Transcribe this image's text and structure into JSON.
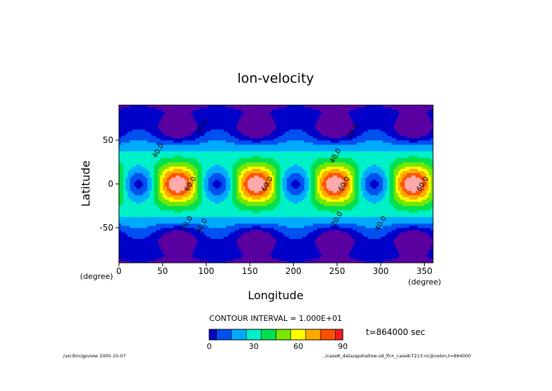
{
  "chart_data": {
    "type": "heatmap",
    "title": "lon-velocity",
    "xlabel": "Longitude",
    "ylabel": "Latitude",
    "x_unit": "(degree)",
    "y_unit": "(degree)",
    "xlim": [
      0,
      360
    ],
    "ylim": [
      -90,
      90
    ],
    "x_ticks": [
      0,
      50,
      100,
      150,
      200,
      250,
      300,
      350
    ],
    "y_ticks": [
      -50,
      0,
      50
    ],
    "contour_interval_text": "CONTOUR INTERVAL = 1.000E+01",
    "time_text": "t=864000 sec",
    "colorbar": {
      "levels": [
        0,
        10,
        20,
        30,
        40,
        50,
        60,
        70,
        80,
        90
      ],
      "tick_labels": [
        "0",
        "30",
        "60",
        "90"
      ],
      "tick_values": [
        0,
        30,
        60,
        90
      ],
      "colors": [
        "#5a00a0",
        "#0000c8",
        "#0050f0",
        "#00aaff",
        "#00f0c8",
        "#00e050",
        "#78e600",
        "#ffff00",
        "#ffaa00",
        "#ff5000",
        "#f01e1e",
        "#ffaaaa"
      ]
    },
    "contour_labels": [
      {
        "text": "20.0",
        "lon": 95,
        "lat": 65
      },
      {
        "text": "40.0",
        "lon": 45,
        "lat": 38
      },
      {
        "text": "20.0",
        "lon": 268,
        "lat": 60
      },
      {
        "text": "40.0",
        "lon": 248,
        "lat": 32
      },
      {
        "text": "60.0",
        "lon": 82,
        "lat": 0
      },
      {
        "text": "60.0",
        "lon": 170,
        "lat": 0
      },
      {
        "text": "60.0",
        "lon": 258,
        "lat": 0
      },
      {
        "text": "60.0",
        "lon": 348,
        "lat": 0
      },
      {
        "text": "20.0",
        "lon": 78,
        "lat": -45
      },
      {
        "text": "40.0",
        "lon": 95,
        "lat": -48
      },
      {
        "text": "20.0",
        "lon": 250,
        "lat": -40
      },
      {
        "text": "40.0",
        "lon": 300,
        "lat": -45
      }
    ],
    "field_model": {
      "wavenumber": 4,
      "phase_lon": 67.5,
      "background_max": 50,
      "background_min": 0,
      "equator_max": 100,
      "equator_min": 8,
      "polar_min": -10
    }
  },
  "footer": {
    "left": "/usr/bin/gpview  2005-10-07",
    "right": "../case8_data/apshallow-sd_lfcn_case8-T213.nc@velon,t=864000"
  }
}
